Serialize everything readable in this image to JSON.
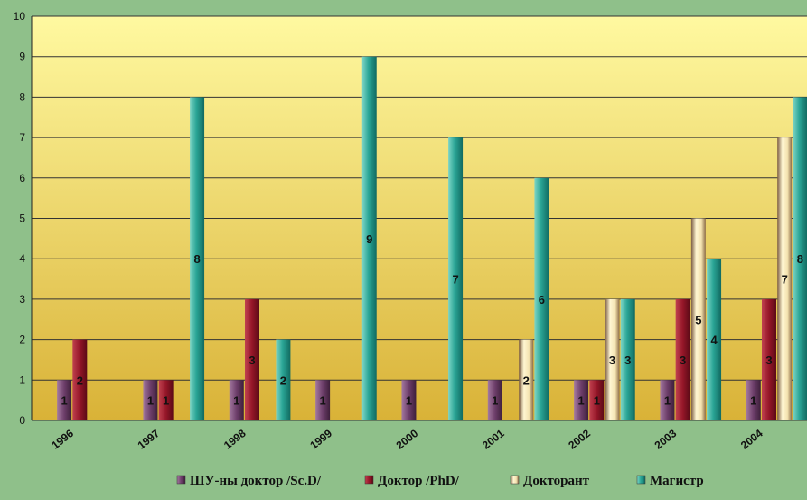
{
  "chart_data": {
    "type": "bar",
    "title": "",
    "xlabel": "",
    "ylabel": "",
    "ylim": [
      0,
      10
    ],
    "yticks": [
      0,
      1,
      2,
      3,
      4,
      5,
      6,
      7,
      8,
      9,
      10
    ],
    "grid": true,
    "legend_position": "bottom",
    "categories": [
      "1996",
      "1997",
      "1998",
      "1999",
      "2000",
      "2001",
      "2002",
      "2003",
      "2004"
    ],
    "series": [
      {
        "name": "ШУ-ны доктор /Sc.D/",
        "color": "#7a4a78",
        "values": [
          1,
          1,
          1,
          1,
          1,
          1,
          1,
          1,
          1
        ]
      },
      {
        "name": "Доктор /PhD/",
        "color": "#9a1a2c",
        "values": [
          2,
          1,
          3,
          null,
          null,
          null,
          1,
          3,
          3
        ]
      },
      {
        "name": "Докторант",
        "color": "#f3e6b0",
        "values": [
          null,
          null,
          null,
          null,
          null,
          2,
          3,
          5,
          7
        ]
      },
      {
        "name": "Магистр",
        "color": "#2aa596",
        "values": [
          null,
          8,
          2,
          9,
          7,
          6,
          3,
          4,
          8
        ]
      }
    ],
    "colors": {
      "plot_top": "#fff9a0",
      "plot_bottom": "#d9b237",
      "background": "#8fc08a",
      "grid": "#333333"
    }
  }
}
